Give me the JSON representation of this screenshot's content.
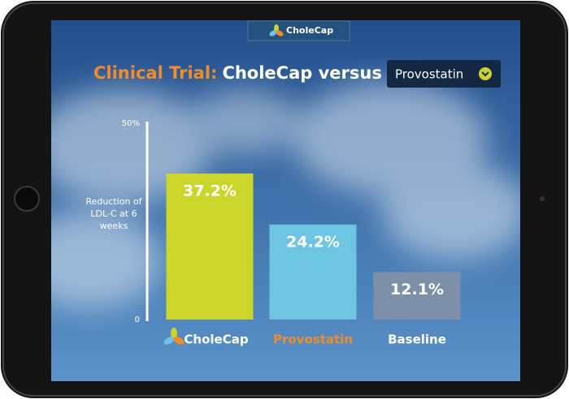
{
  "chart_data": {
    "type": "bar",
    "brand": "CholeCap",
    "title": {
      "lead": "Clinical Trial:",
      "rest": "CholeCap versus"
    },
    "selector": "Provostatin",
    "ylabel": "Reduction of LDL-C at 6 weeks",
    "categories": [
      "CholeCap",
      "Provostatin",
      "Baseline"
    ],
    "values": [
      37.2,
      24.2,
      12.1
    ],
    "value_labels": [
      "37.2%",
      "24.2%",
      "12.1%"
    ],
    "colors": [
      "#ccd62a",
      "#6ec5e2",
      "#7d90a8"
    ],
    "category_colors": [
      "#ffffff",
      "#f28c28",
      "#ffffff"
    ],
    "ylim": [
      0,
      50
    ],
    "yticks": [
      0,
      {
        "value": 50,
        "label": "50%"
      }
    ],
    "grid": false
  }
}
